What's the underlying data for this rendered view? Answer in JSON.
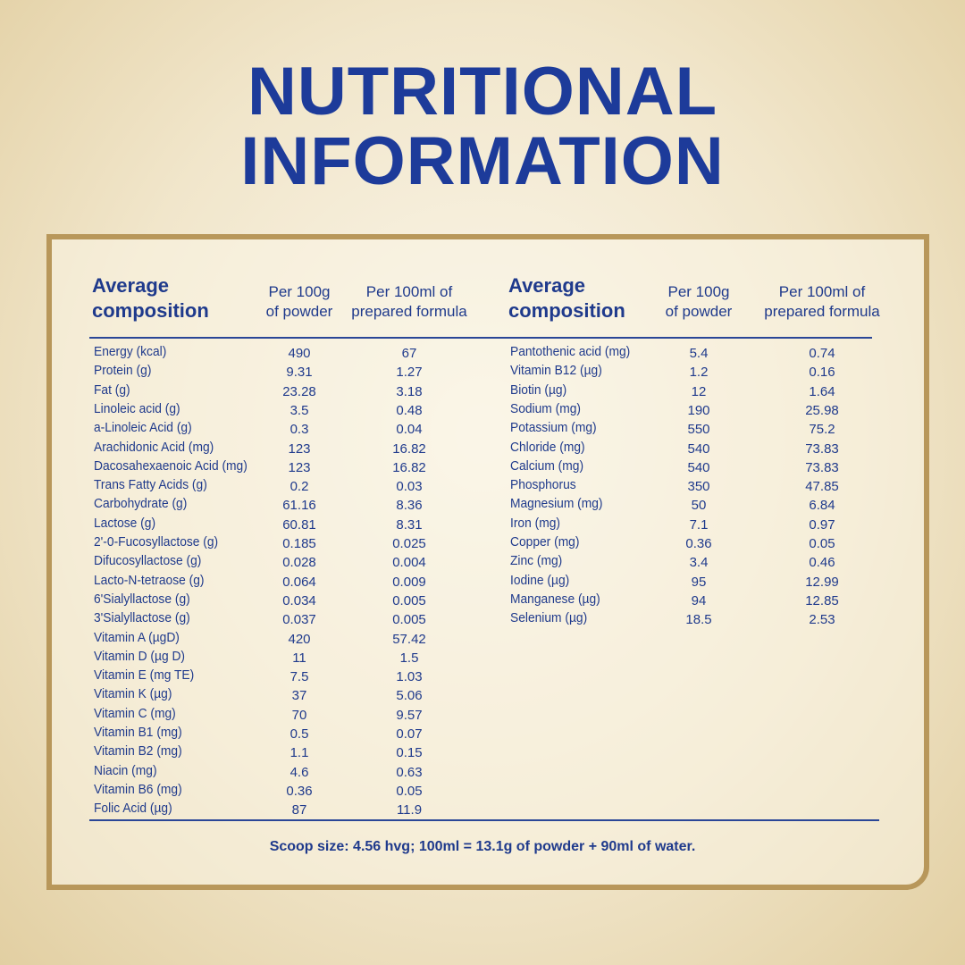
{
  "title": [
    "NUTRITIONAL",
    "INFORMATION"
  ],
  "tables": [
    {
      "headers": [
        [
          "Average",
          "composition"
        ],
        [
          "Per 100g",
          "of powder"
        ],
        [
          "Per 100ml of",
          "prepared formula"
        ]
      ],
      "rows": [
        [
          "Energy (kcal)",
          "490",
          "67"
        ],
        [
          "Protein (g)",
          "9.31",
          "1.27"
        ],
        [
          "Fat (g)",
          "23.28",
          "3.18"
        ],
        [
          "Linoleic acid (g)",
          "3.5",
          "0.48"
        ],
        [
          "a-Linoleic Acid (g)",
          "0.3",
          "0.04"
        ],
        [
          "Arachidonic Acid (mg)",
          "123",
          "16.82"
        ],
        [
          "Dacosahexaenoic Acid (mg)",
          "123",
          "16.82"
        ],
        [
          "Trans Fatty Acids (g)",
          "0.2",
          "0.03"
        ],
        [
          "Carbohydrate (g)",
          "61.16",
          "8.36"
        ],
        [
          "Lactose (g)",
          "60.81",
          "8.31"
        ],
        [
          "2'-0-Fucosyllactose (g)",
          "0.185",
          "0.025"
        ],
        [
          "Difucosyllactose (g)",
          "0.028",
          "0.004"
        ],
        [
          "Lacto-N-tetraose (g)",
          "0.064",
          "0.009"
        ],
        [
          "6'Sialyllactose (g)",
          "0.034",
          "0.005"
        ],
        [
          "3'Sialyllactose (g)",
          "0.037",
          "0.005"
        ],
        [
          "Vitamin A (µgD)",
          "420",
          "57.42"
        ],
        [
          "Vitamin D (µg D)",
          "11",
          "1.5"
        ],
        [
          "Vitamin E (mg TE)",
          "7.5",
          "1.03"
        ],
        [
          "Vitamin K (µg)",
          "37",
          "5.06"
        ],
        [
          "Vitamin C (mg)",
          "70",
          "9.57"
        ],
        [
          "Vitamin B1 (mg)",
          "0.5",
          "0.07"
        ],
        [
          "Vitamin B2 (mg)",
          "1.1",
          "0.15"
        ],
        [
          "Niacin (mg)",
          "4.6",
          "0.63"
        ],
        [
          "Vitamin B6 (mg)",
          "0.36",
          "0.05"
        ],
        [
          "Folic Acid (µg)",
          "87",
          "11.9"
        ]
      ]
    },
    {
      "headers": [
        [
          "Average",
          "composition"
        ],
        [
          "Per 100g",
          "of powder"
        ],
        [
          "Per 100ml of",
          "prepared formula"
        ]
      ],
      "rows": [
        [
          "Pantothenic acid (mg)",
          "5.4",
          "0.74"
        ],
        [
          "Vitamin B12 (µg)",
          "1.2",
          "0.16"
        ],
        [
          "Biotin (µg)",
          "12",
          "1.64"
        ],
        [
          "Sodium (mg)",
          "190",
          "25.98"
        ],
        [
          "Potassium (mg)",
          "550",
          "75.2"
        ],
        [
          "Chloride (mg)",
          "540",
          "73.83"
        ],
        [
          "Calcium (mg)",
          "540",
          "73.83"
        ],
        [
          "Phosphorus",
          "350",
          "47.85"
        ],
        [
          "Magnesium (mg)",
          "50",
          "6.84"
        ],
        [
          "Iron (mg)",
          "7.1",
          "0.97"
        ],
        [
          "Copper (mg)",
          "0.36",
          "0.05"
        ],
        [
          "Zinc (mg)",
          "3.4",
          "0.46"
        ],
        [
          "Iodine (µg)",
          "95",
          "12.99"
        ],
        [
          "Manganese (µg)",
          "94",
          "12.85"
        ],
        [
          "Selenium (µg)",
          "18.5",
          "2.53"
        ]
      ]
    }
  ],
  "footer": "Scoop size: 4.56 hvg; 100ml = 13.1g of powder + 90ml of water."
}
